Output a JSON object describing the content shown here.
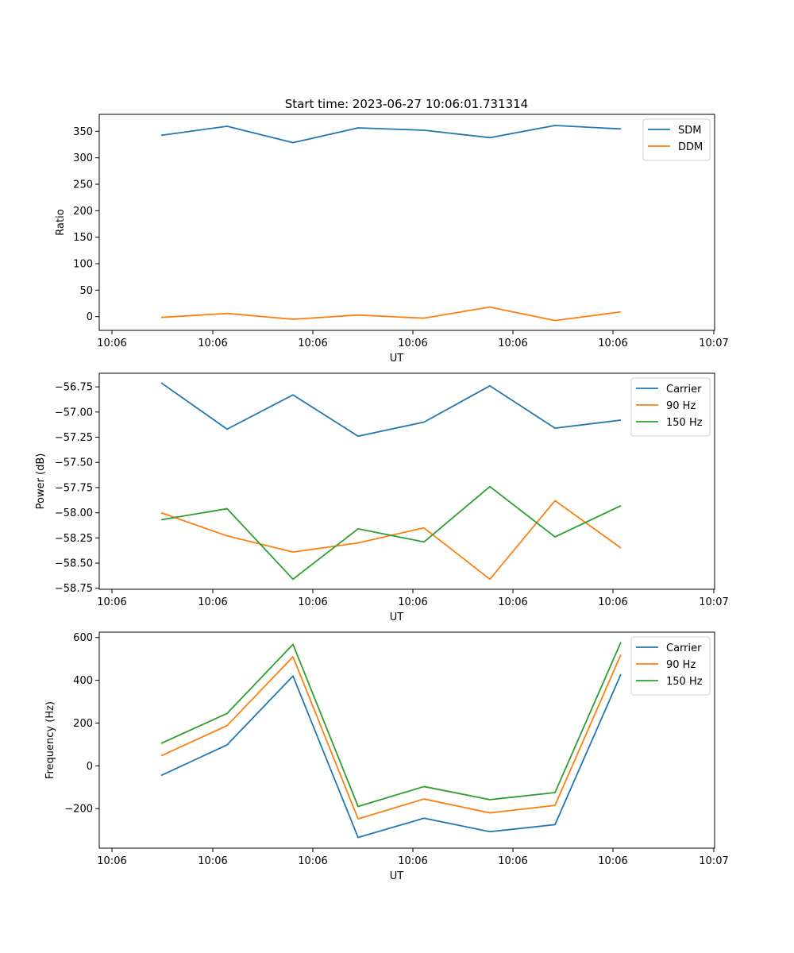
{
  "figure_title": "Start time: 2023-06-27 10:06:01.731314",
  "colors": {
    "blue": "#1f77b4",
    "orange": "#ff7f0e",
    "green": "#2ca02c"
  },
  "chart_data": [
    {
      "type": "line",
      "title": "Start time: 2023-06-27 10:06:01.731314",
      "xlabel": "UT",
      "ylabel": "Ratio",
      "x_tick_labels": [
        "10:06",
        "10:06",
        "10:06",
        "10:06",
        "10:06",
        "10:06",
        "10:06",
        "10:07"
      ],
      "y_ticks": [
        0,
        50,
        100,
        150,
        200,
        250,
        300,
        350
      ],
      "ylim": [
        -26,
        382
      ],
      "legend_position": "top-right",
      "grid": false,
      "series": [
        {
          "name": "SDM",
          "color": "#1f77b4",
          "values": [
            342.5,
            359.5,
            328.5,
            356.5,
            352.0,
            338.0,
            361.0,
            354.5
          ]
        },
        {
          "name": "DDM",
          "color": "#ff7f0e",
          "values": [
            -1.5,
            6.0,
            -5.0,
            3.0,
            -3.0,
            18.0,
            -7.5,
            9.0
          ]
        }
      ]
    },
    {
      "type": "line",
      "xlabel": "UT",
      "ylabel": "Power (dB)",
      "x_tick_labels": [
        "10:06",
        "10:06",
        "10:06",
        "10:06",
        "10:06",
        "10:06",
        "10:06",
        "10:07"
      ],
      "y_ticks": [
        -58.75,
        -58.5,
        -58.25,
        -58.0,
        -57.75,
        -57.5,
        -57.25,
        -57.0,
        -56.75
      ],
      "y_tick_labels": [
        "−58.75",
        "−58.50",
        "−58.25",
        "−58.00",
        "−57.75",
        "−57.50",
        "−57.25",
        "−57.00",
        "−56.75"
      ],
      "ylim": [
        -58.76,
        -56.615
      ],
      "legend_position": "top-right",
      "grid": false,
      "series": [
        {
          "name": "Carrier",
          "color": "#1f77b4",
          "values": [
            -56.71,
            -57.17,
            -56.83,
            -57.24,
            -57.1,
            -56.74,
            -57.16,
            -57.08
          ]
        },
        {
          "name": "90 Hz",
          "color": "#ff7f0e",
          "values": [
            -58.0,
            -58.23,
            -58.39,
            -58.3,
            -58.15,
            -58.66,
            -57.88,
            -58.35
          ]
        },
        {
          "name": "150 Hz",
          "color": "#2ca02c",
          "values": [
            -58.07,
            -57.96,
            -58.66,
            -58.16,
            -58.29,
            -57.74,
            -58.24,
            -57.93
          ]
        }
      ]
    },
    {
      "type": "line",
      "xlabel": "UT",
      "ylabel": "Frequency (Hz)",
      "x_tick_labels": [
        "10:06",
        "10:06",
        "10:06",
        "10:06",
        "10:06",
        "10:06",
        "10:06",
        "10:07"
      ],
      "y_ticks": [
        -200,
        0,
        200,
        400,
        600
      ],
      "y_tick_labels": [
        "−200",
        "0",
        "200",
        "400",
        "600"
      ],
      "ylim": [
        -385,
        625
      ],
      "legend_position": "top-right",
      "grid": false,
      "series": [
        {
          "name": "Carrier",
          "color": "#1f77b4",
          "values": [
            -45,
            98,
            420,
            -335,
            -245,
            -308,
            -275,
            428
          ]
        },
        {
          "name": "90 Hz",
          "color": "#ff7f0e",
          "values": [
            47,
            188,
            510,
            -248,
            -155,
            -220,
            -185,
            520
          ]
        },
        {
          "name": "150 Hz",
          "color": "#2ca02c",
          "values": [
            105,
            245,
            568,
            -190,
            -97,
            -158,
            -125,
            578
          ]
        }
      ]
    }
  ]
}
